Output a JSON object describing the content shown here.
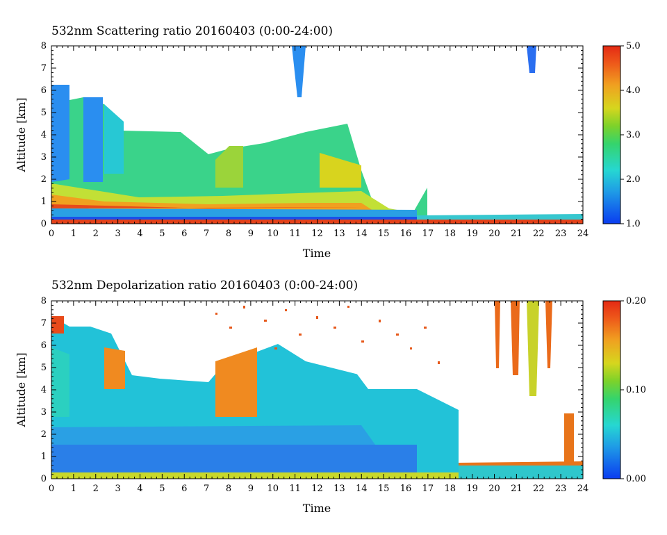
{
  "chart_data": [
    {
      "type": "heatmap",
      "title": "532nm Scattering ratio  20160403 (0:00-24:00)",
      "xlabel": "Time",
      "ylabel": "Altitude [km]",
      "xlim": [
        0,
        24
      ],
      "ylim": [
        0,
        8
      ],
      "x_ticks": [
        "0",
        "1",
        "2",
        "3",
        "4",
        "5",
        "6",
        "7",
        "8",
        "9",
        "10",
        "11",
        "12",
        "13",
        "14",
        "15",
        "16",
        "17",
        "18",
        "19",
        "20",
        "21",
        "22",
        "23",
        "24"
      ],
      "y_ticks": [
        "0",
        "1",
        "2",
        "3",
        "4",
        "5",
        "6",
        "7",
        "8"
      ],
      "colorbar": {
        "range": [
          1.0,
          5.0
        ],
        "ticks": [
          "1.0",
          "2.0",
          "3.0",
          "4.0",
          "5.0"
        ]
      },
      "grid": false
    },
    {
      "type": "heatmap",
      "title": "532nm Depolarization ratio  20160403 (0:00-24:00)",
      "xlabel": "Time",
      "ylabel": "Altitude [km]",
      "xlim": [
        0,
        24
      ],
      "ylim": [
        0,
        8
      ],
      "x_ticks": [
        "0",
        "1",
        "2",
        "3",
        "4",
        "5",
        "6",
        "7",
        "8",
        "9",
        "10",
        "11",
        "12",
        "13",
        "14",
        "15",
        "16",
        "17",
        "18",
        "19",
        "20",
        "21",
        "22",
        "23",
        "24"
      ],
      "y_ticks": [
        "0",
        "1",
        "2",
        "3",
        "4",
        "5",
        "6",
        "7",
        "8"
      ],
      "colorbar": {
        "range": [
          0.0,
          0.2
        ],
        "ticks": [
          "0.00",
          "0.10",
          "0.20"
        ]
      },
      "grid": false
    }
  ]
}
